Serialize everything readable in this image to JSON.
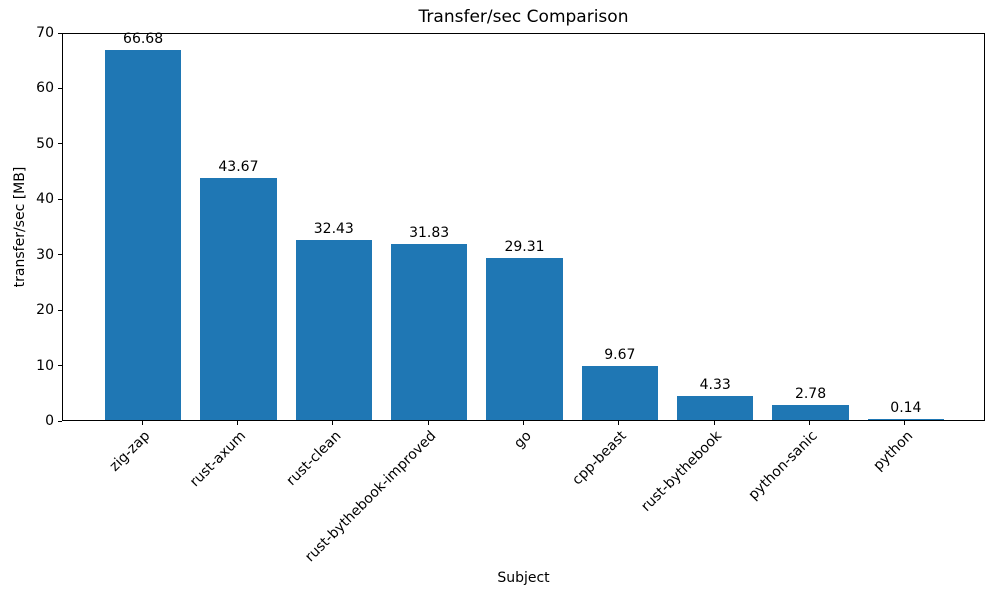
{
  "chart_data": {
    "type": "bar",
    "title": "Transfer/sec Comparison",
    "xlabel": "Subject",
    "ylabel": "transfer/sec [MB]",
    "categories": [
      "zig-zap",
      "rust-axum",
      "rust-clean",
      "rust-bythebook-improved",
      "go",
      "cpp-beast",
      "rust-bythebook",
      "python-sanic",
      "python"
    ],
    "values": [
      66.68,
      43.67,
      32.43,
      31.83,
      29.31,
      9.67,
      4.33,
      2.78,
      0.14
    ],
    "bar_labels": [
      "66.68",
      "43.67",
      "32.43",
      "31.83",
      "29.31",
      "9.67",
      "4.33",
      "2.78",
      "0.14"
    ],
    "ylim": [
      0,
      70
    ],
    "yticks": [
      0,
      10,
      20,
      30,
      40,
      50,
      60,
      70
    ],
    "bar_color": "#1f77b4",
    "grid": false,
    "legend_position": "none",
    "tick_rotation_deg": 45
  }
}
